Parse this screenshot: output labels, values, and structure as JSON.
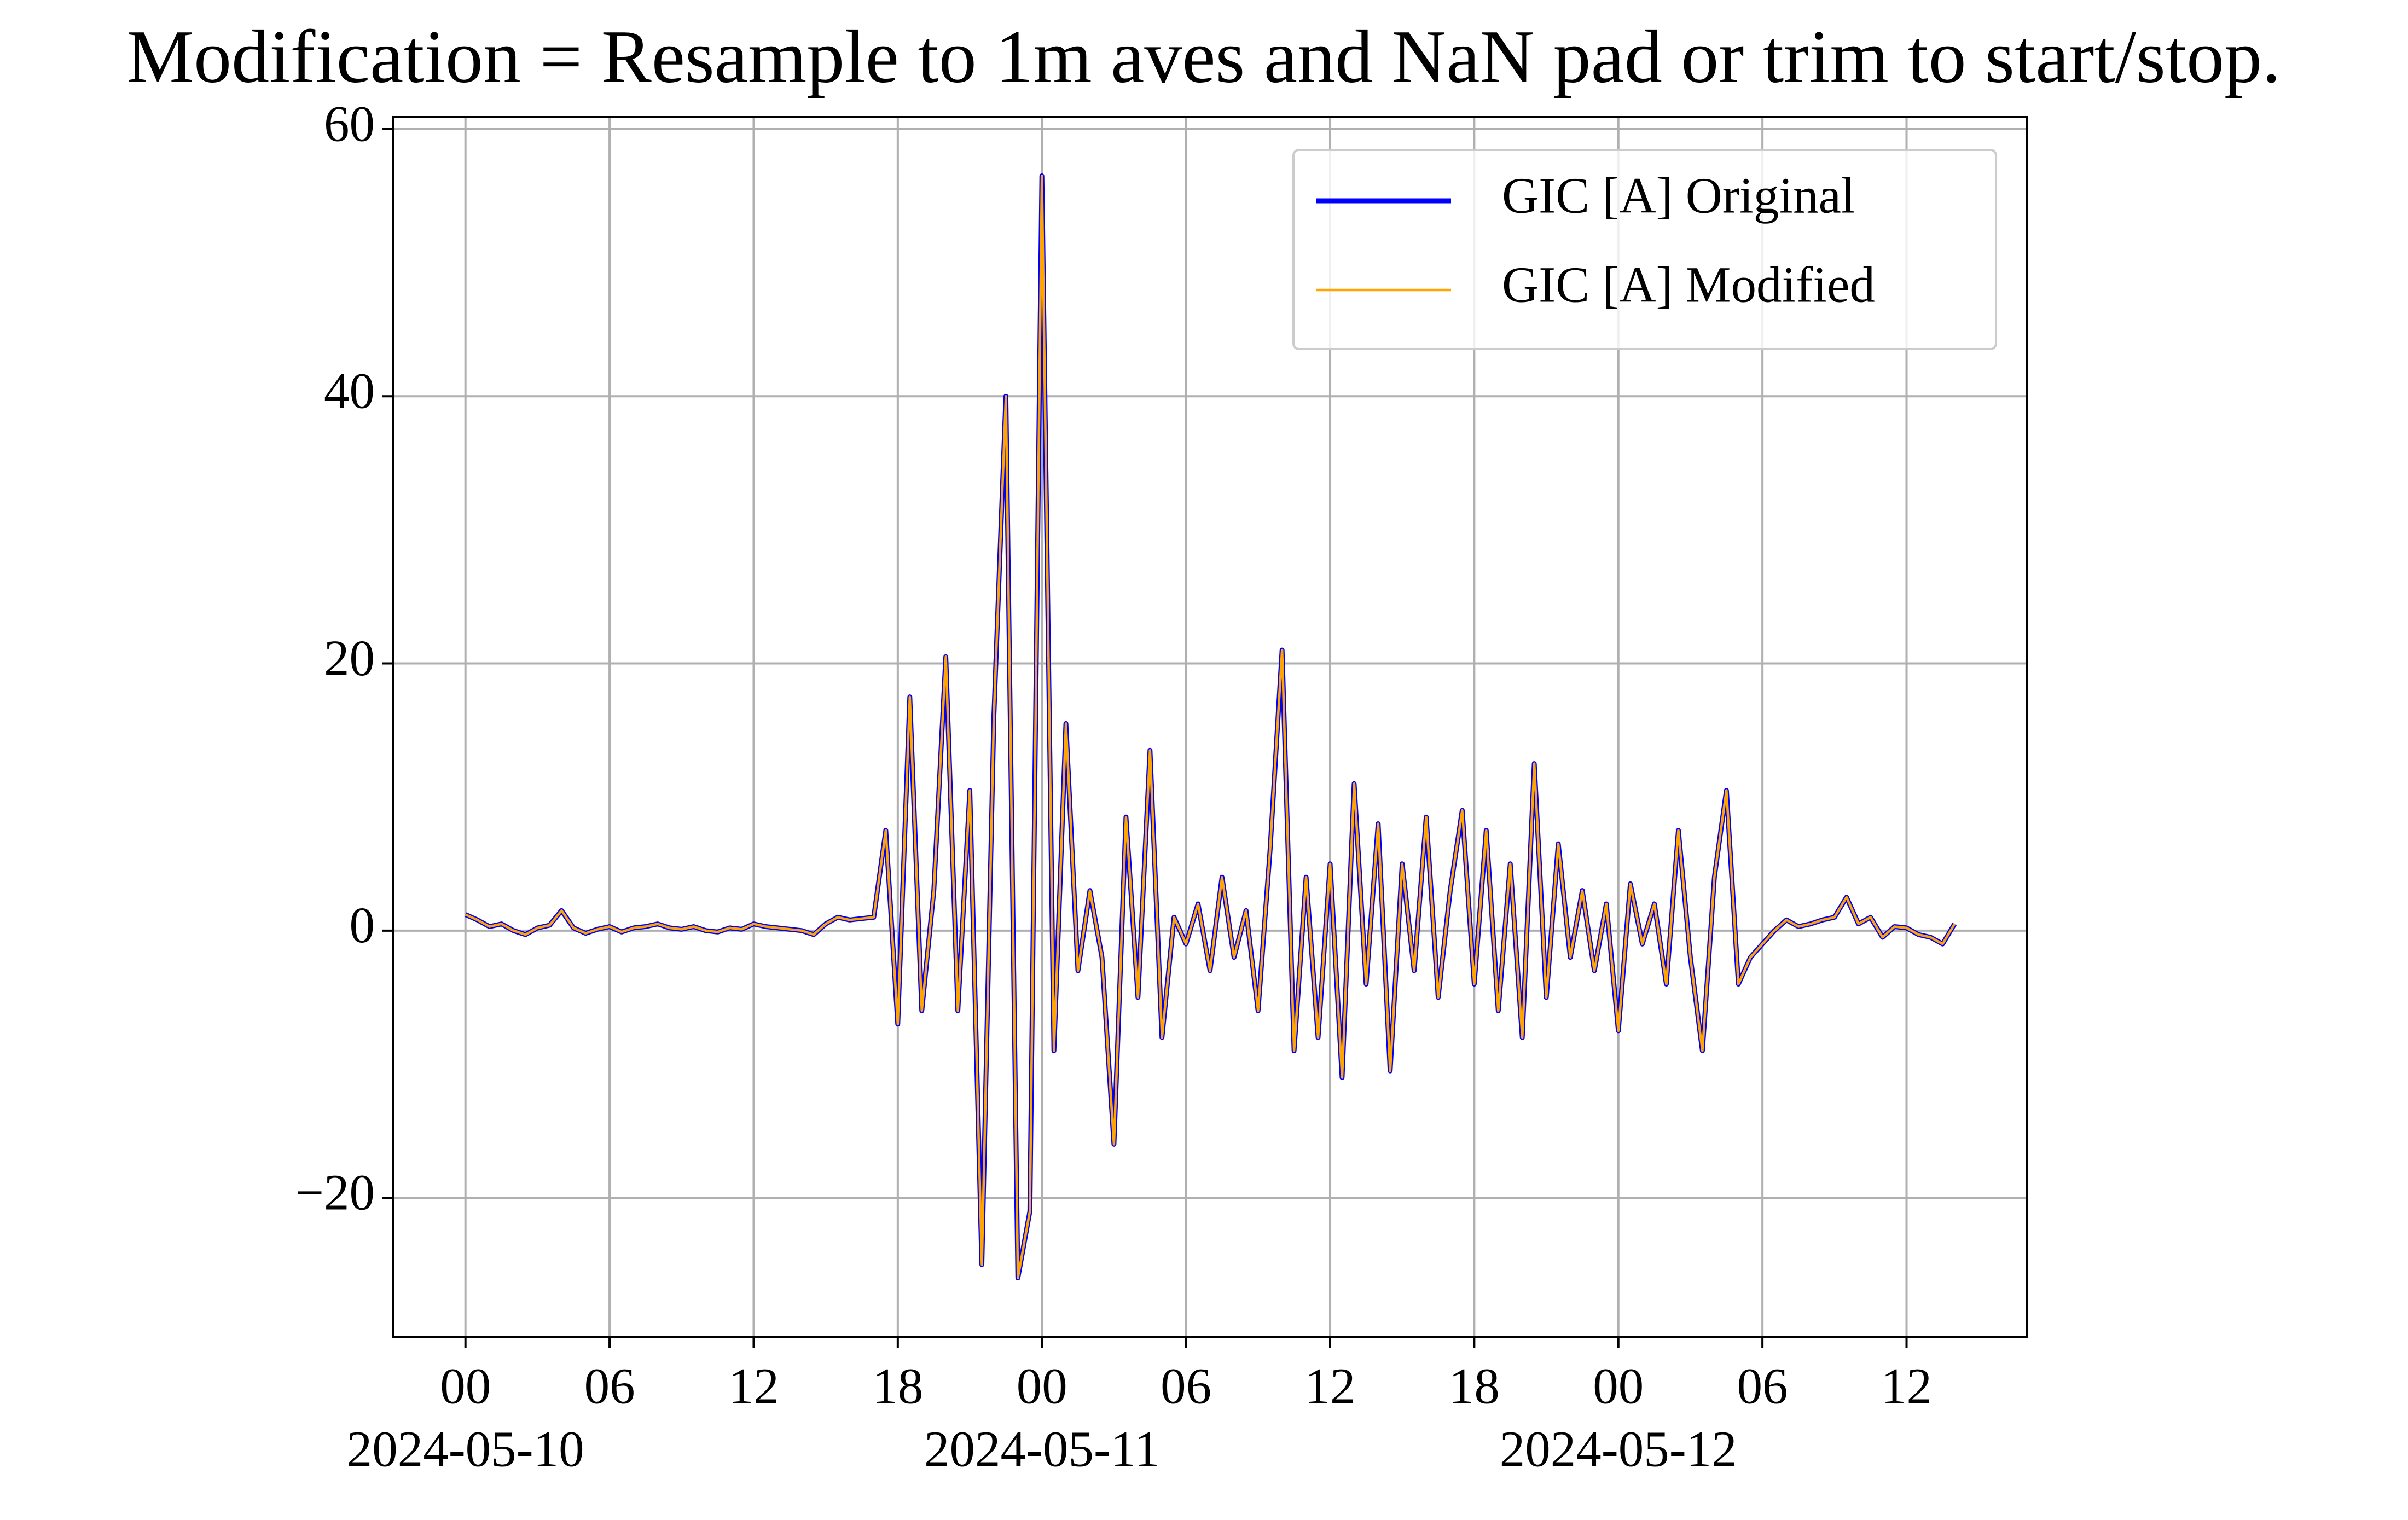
{
  "chart_data": {
    "type": "line",
    "title": "Modification = Resample to 1m aves and NaN pad or trim to start/stop.",
    "x": [
      "2024-05-10 00:00",
      "2024-05-10 00:30",
      "2024-05-10 01:00",
      "2024-05-10 01:30",
      "2024-05-10 02:00",
      "2024-05-10 02:30",
      "2024-05-10 03:00",
      "2024-05-10 03:30",
      "2024-05-10 04:00",
      "2024-05-10 04:30",
      "2024-05-10 05:00",
      "2024-05-10 05:30",
      "2024-05-10 06:00",
      "2024-05-10 06:30",
      "2024-05-10 07:00",
      "2024-05-10 07:30",
      "2024-05-10 08:00",
      "2024-05-10 08:30",
      "2024-05-10 09:00",
      "2024-05-10 09:30",
      "2024-05-10 10:00",
      "2024-05-10 10:30",
      "2024-05-10 11:00",
      "2024-05-10 11:30",
      "2024-05-10 12:00",
      "2024-05-10 12:30",
      "2024-05-10 13:00",
      "2024-05-10 13:30",
      "2024-05-10 14:00",
      "2024-05-10 14:30",
      "2024-05-10 15:00",
      "2024-05-10 15:30",
      "2024-05-10 16:00",
      "2024-05-10 16:30",
      "2024-05-10 17:00",
      "2024-05-10 17:30",
      "2024-05-10 18:00",
      "2024-05-10 18:30",
      "2024-05-10 19:00",
      "2024-05-10 19:30",
      "2024-05-10 20:00",
      "2024-05-10 20:30",
      "2024-05-10 21:00",
      "2024-05-10 21:30",
      "2024-05-10 22:00",
      "2024-05-10 22:30",
      "2024-05-10 23:00",
      "2024-05-10 23:30",
      "2024-05-11 00:00",
      "2024-05-11 00:30",
      "2024-05-11 01:00",
      "2024-05-11 01:30",
      "2024-05-11 02:00",
      "2024-05-11 02:30",
      "2024-05-11 03:00",
      "2024-05-11 03:30",
      "2024-05-11 04:00",
      "2024-05-11 04:30",
      "2024-05-11 05:00",
      "2024-05-11 05:30",
      "2024-05-11 06:00",
      "2024-05-11 06:30",
      "2024-05-11 07:00",
      "2024-05-11 07:30",
      "2024-05-11 08:00",
      "2024-05-11 08:30",
      "2024-05-11 09:00",
      "2024-05-11 09:30",
      "2024-05-11 10:00",
      "2024-05-11 10:30",
      "2024-05-11 11:00",
      "2024-05-11 11:30",
      "2024-05-11 12:00",
      "2024-05-11 12:30",
      "2024-05-11 13:00",
      "2024-05-11 13:30",
      "2024-05-11 14:00",
      "2024-05-11 14:30",
      "2024-05-11 15:00",
      "2024-05-11 15:30",
      "2024-05-11 16:00",
      "2024-05-11 16:30",
      "2024-05-11 17:00",
      "2024-05-11 17:30",
      "2024-05-11 18:00",
      "2024-05-11 18:30",
      "2024-05-11 19:00",
      "2024-05-11 19:30",
      "2024-05-11 20:00",
      "2024-05-11 20:30",
      "2024-05-11 21:00",
      "2024-05-11 21:30",
      "2024-05-11 22:00",
      "2024-05-11 22:30",
      "2024-05-11 23:00",
      "2024-05-11 23:30",
      "2024-05-12 00:00",
      "2024-05-12 00:30",
      "2024-05-12 01:00",
      "2024-05-12 01:30",
      "2024-05-12 02:00",
      "2024-05-12 02:30",
      "2024-05-12 03:00",
      "2024-05-12 03:30",
      "2024-05-12 04:00",
      "2024-05-12 04:30",
      "2024-05-12 05:00",
      "2024-05-12 05:30",
      "2024-05-12 06:00",
      "2024-05-12 06:30",
      "2024-05-12 07:00",
      "2024-05-12 07:30",
      "2024-05-12 08:00",
      "2024-05-12 08:30",
      "2024-05-12 09:00",
      "2024-05-12 09:30",
      "2024-05-12 10:00",
      "2024-05-12 10:30",
      "2024-05-12 11:00",
      "2024-05-12 11:30",
      "2024-05-12 12:00",
      "2024-05-12 12:30",
      "2024-05-12 13:00",
      "2024-05-12 13:30",
      "2024-05-12 14:00"
    ],
    "series": [
      {
        "name": "GIC [A] Original",
        "color": "#0000ff",
        "values": [
          1.2,
          0.8,
          0.3,
          0.5,
          0,
          -0.3,
          0.2,
          0.4,
          1.5,
          0.2,
          -0.2,
          0.1,
          0.3,
          -0.1,
          0.2,
          0.3,
          0.5,
          0.2,
          0.1,
          0.3,
          0,
          -0.1,
          0.2,
          0.1,
          0.5,
          0.3,
          0.2,
          0.1,
          0,
          -0.3,
          0.5,
          1.0,
          0.8,
          0.9,
          1.0,
          7.5,
          -7,
          17.5,
          -6,
          3,
          20.5,
          -6,
          10.5,
          -25,
          16,
          40,
          -26,
          -21,
          56.5,
          -9,
          15.5,
          -3,
          3,
          -2,
          -16,
          8.5,
          -5,
          13.5,
          -8,
          1,
          -1,
          2,
          -3,
          4,
          -2,
          1.5,
          -6,
          6,
          21,
          -9,
          4,
          -8,
          5,
          -11,
          11,
          -4,
          8,
          -10.5,
          5,
          -3,
          8.5,
          -5,
          3,
          9,
          -4,
          7.5,
          -6,
          5,
          -8,
          12.5,
          -5,
          6.5,
          -2,
          3,
          -3,
          2,
          -7.5,
          3.5,
          -1,
          2,
          -4,
          7.5,
          -2,
          -9,
          4,
          10.5,
          -4,
          -2,
          -1,
          0,
          0.8,
          0.3,
          0.5,
          0.8,
          1,
          2.5,
          0.5,
          1,
          -0.5,
          0.3,
          0.2,
          -0.3,
          -0.5,
          -1,
          0.5
        ]
      },
      {
        "name": "GIC [A] Modified",
        "color": "#ffa500",
        "values": [
          1.2,
          0.8,
          0.3,
          0.5,
          0,
          -0.3,
          0.2,
          0.4,
          1.5,
          0.2,
          -0.2,
          0.1,
          0.3,
          -0.1,
          0.2,
          0.3,
          0.5,
          0.2,
          0.1,
          0.3,
          0,
          -0.1,
          0.2,
          0.1,
          0.5,
          0.3,
          0.2,
          0.1,
          0,
          -0.3,
          0.5,
          1.0,
          0.8,
          0.9,
          1.0,
          7.5,
          -7,
          17.5,
          -6,
          3,
          20.5,
          -6,
          10.5,
          -25,
          16,
          40,
          -26,
          -21,
          56.5,
          -9,
          15.5,
          -3,
          3,
          -2,
          -16,
          8.5,
          -5,
          13.5,
          -8,
          1,
          -1,
          2,
          -3,
          4,
          -2,
          1.5,
          -6,
          6,
          21,
          -9,
          4,
          -8,
          5,
          -11,
          11,
          -4,
          8,
          -10.5,
          5,
          -3,
          8.5,
          -5,
          3,
          9,
          -4,
          7.5,
          -6,
          5,
          -8,
          12.5,
          -5,
          6.5,
          -2,
          3,
          -3,
          2,
          -7.5,
          3.5,
          -1,
          2,
          -4,
          7.5,
          -2,
          -9,
          4,
          10.5,
          -4,
          -2,
          -1,
          0,
          0.8,
          0.3,
          0.5,
          0.8,
          1,
          2.5,
          0.5,
          1,
          -0.5,
          0.3,
          0.2,
          -0.3,
          -0.5,
          -1,
          0.5
        ]
      }
    ],
    "xlim": [
      "2024-05-09 21:00",
      "2024-05-12 17:00"
    ],
    "xticks": [
      {
        "value": "2024-05-10 00:00",
        "label": "00"
      },
      {
        "value": "2024-05-10 06:00",
        "label": "06"
      },
      {
        "value": "2024-05-10 12:00",
        "label": "12"
      },
      {
        "value": "2024-05-10 18:00",
        "label": "18"
      },
      {
        "value": "2024-05-11 00:00",
        "label": "00"
      },
      {
        "value": "2024-05-11 06:00",
        "label": "06"
      },
      {
        "value": "2024-05-11 12:00",
        "label": "12"
      },
      {
        "value": "2024-05-11 18:00",
        "label": "18"
      },
      {
        "value": "2024-05-12 00:00",
        "label": "00"
      },
      {
        "value": "2024-05-12 06:00",
        "label": "06"
      },
      {
        "value": "2024-05-12 12:00",
        "label": "12"
      }
    ],
    "x_date_labels": [
      {
        "value": "2024-05-10 00:00",
        "label": "2024-05-10"
      },
      {
        "value": "2024-05-11 00:00",
        "label": "2024-05-11"
      },
      {
        "value": "2024-05-12 00:00",
        "label": "2024-05-12"
      }
    ],
    "ylim": [
      -30.4,
      60.9
    ],
    "yticks": [
      -20,
      0,
      20,
      40,
      60
    ],
    "grid": true,
    "legend": "upper right"
  }
}
